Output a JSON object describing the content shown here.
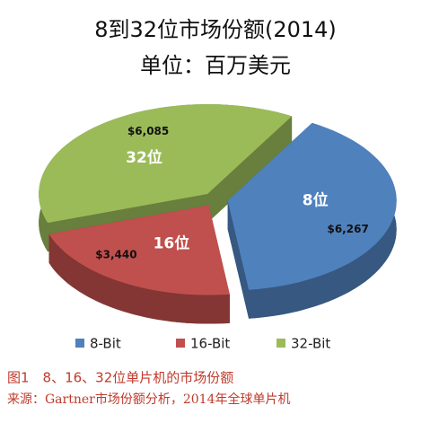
{
  "chart_data": {
    "type": "pie",
    "title": "8到32位市场份额(2014)",
    "subtitle": "单位：百万美元",
    "categories": [
      "8-Bit",
      "16-Bit",
      "32-Bit"
    ],
    "slice_labels": [
      "8位",
      "16位",
      "32位"
    ],
    "values": [
      6267,
      3440,
      6085
    ],
    "value_labels": [
      "$6,267",
      "$3,440",
      "$6,085"
    ],
    "colors": [
      "#4f81bd",
      "#c0504d",
      "#9bbb59"
    ],
    "legend": "bottom"
  },
  "caption": {
    "figure": "图1　8、16、32位单片机的市场份额",
    "source": "来源：Gartner市场份额分析，2014年全球单片机"
  }
}
